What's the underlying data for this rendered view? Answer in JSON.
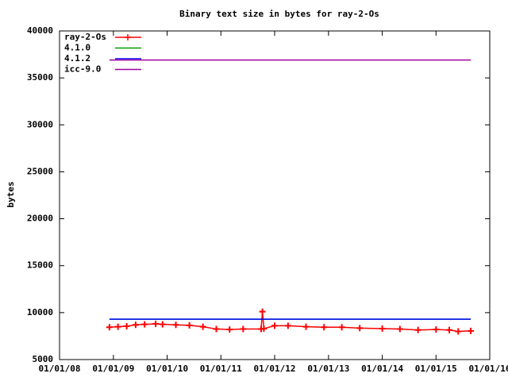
{
  "chart_data": {
    "type": "line",
    "title": "Binary text size in bytes for ray-2-Os",
    "y_label": "bytes",
    "xlim": [
      "2008-01-01",
      "2016-01-01"
    ],
    "xticks": [
      {
        "value": "2008-01-01",
        "label": "01/01/08"
      },
      {
        "value": "2009-01-01",
        "label": "01/01/09"
      },
      {
        "value": "2010-01-01",
        "label": "01/01/10"
      },
      {
        "value": "2011-01-01",
        "label": "01/01/11"
      },
      {
        "value": "2012-01-01",
        "label": "01/01/12"
      },
      {
        "value": "2013-01-01",
        "label": "01/01/13"
      },
      {
        "value": "2014-01-01",
        "label": "01/01/14"
      },
      {
        "value": "2015-01-01",
        "label": "01/01/15"
      },
      {
        "value": "2016-01-01",
        "label": "01/01/16"
      }
    ],
    "ylim": [
      5000,
      40000
    ],
    "yticks": [
      5000,
      10000,
      15000,
      20000,
      25000,
      30000,
      35000,
      40000
    ],
    "grid": false,
    "legend": "top-left",
    "series": [
      {
        "name": "ray-2-Os",
        "color": "#ff0000",
        "markers": true,
        "x": [
          "2008-12-05",
          "2009-02-01",
          "2009-04-01",
          "2009-06-01",
          "2009-08-01",
          "2009-10-15",
          "2009-12-01",
          "2010-03-01",
          "2010-06-01",
          "2010-09-01",
          "2010-12-01",
          "2011-03-01",
          "2011-06-01",
          "2011-10-01",
          "2011-10-10",
          "2011-10-20",
          "2012-01-01",
          "2012-04-01",
          "2012-08-01",
          "2012-12-01",
          "2013-04-01",
          "2013-08-01",
          "2014-01-01",
          "2014-05-01",
          "2014-09-01",
          "2015-01-01",
          "2015-04-01",
          "2015-06-01",
          "2015-08-25"
        ],
        "values": [
          8450,
          8500,
          8550,
          8700,
          8750,
          8800,
          8750,
          8700,
          8650,
          8500,
          8250,
          8200,
          8250,
          8250,
          10100,
          8300,
          8600,
          8600,
          8500,
          8450,
          8450,
          8350,
          8300,
          8250,
          8150,
          8200,
          8150,
          8000,
          8050
        ]
      },
      {
        "name": "4.1.0",
        "color": "#00a000",
        "markers": false,
        "x": [
          "2008-12-05",
          "2015-08-25"
        ],
        "values": [
          9300,
          9300
        ]
      },
      {
        "name": "4.1.2",
        "color": "#0000ff",
        "markers": false,
        "x": [
          "2008-12-05",
          "2015-08-25"
        ],
        "values": [
          9300,
          9300
        ]
      },
      {
        "name": "icc-9.0",
        "color": "#a000a0",
        "markers": false,
        "x": [
          "2008-12-05",
          "2015-08-25"
        ],
        "values": [
          36900,
          36900
        ]
      }
    ]
  }
}
